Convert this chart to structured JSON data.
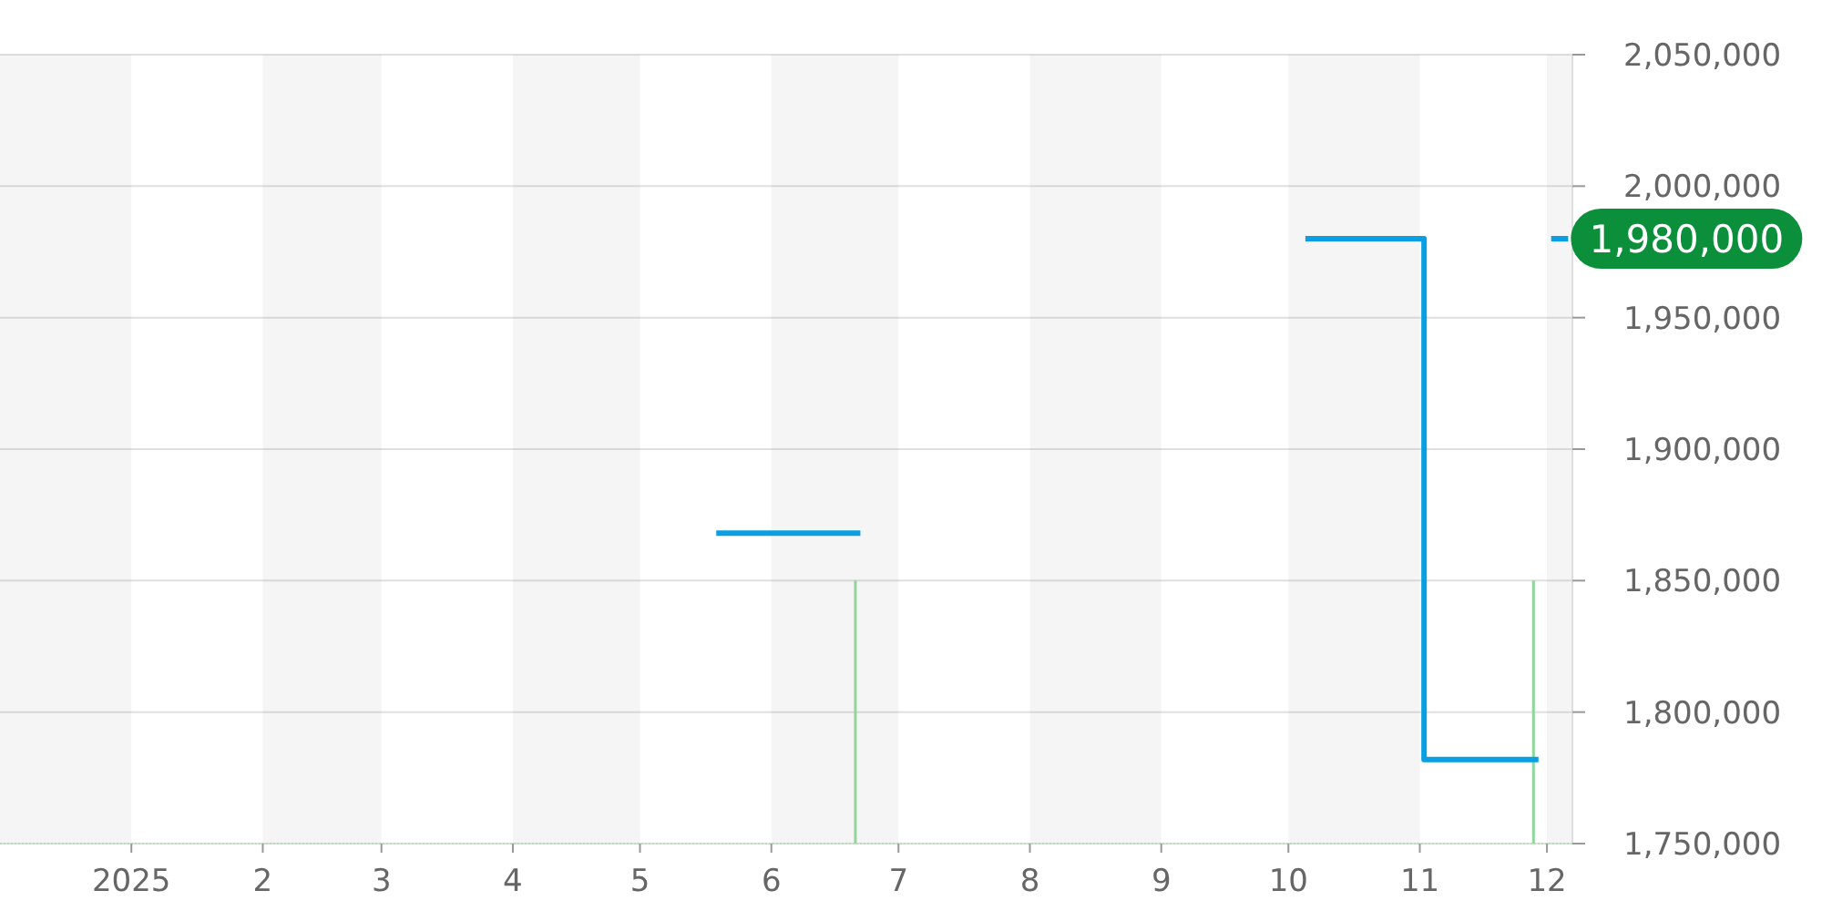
{
  "chart_data": {
    "type": "step",
    "series": [
      {
        "color": "#0a9ee2",
        "x": [
          "2025-05-19",
          "2025-06-22",
          "2025-08-01",
          "2025-10-05",
          "2025-11-02",
          "2025-11-29",
          "2025-11-30",
          "2025-12-02",
          "2025-12-06"
        ],
        "values": [
          1868000,
          1868000,
          null,
          1980000,
          1782000,
          1782000,
          null,
          1980000,
          1980000
        ],
        "value_labels": [
          null,
          null,
          null,
          null,
          null,
          null,
          null,
          null,
          "1,980,000"
        ]
      },
      {
        "type": "bar",
        "color": "#8fd69b",
        "x": [
          "2025-06-21",
          "2025-11-28"
        ],
        "values": [
          1850000,
          1850000
        ]
      }
    ],
    "xlim": [
      "2024-12-01",
      "2025-12-07"
    ],
    "xticks": [
      {
        "value": "2025-01-01",
        "label": "2025"
      },
      {
        "value": "2025-02-01",
        "label": "2"
      },
      {
        "value": "2025-03-01",
        "label": "3"
      },
      {
        "value": "2025-04-01",
        "label": "4"
      },
      {
        "value": "2025-05-01",
        "label": "5"
      },
      {
        "value": "2025-06-01",
        "label": "6"
      },
      {
        "value": "2025-07-01",
        "label": "7"
      },
      {
        "value": "2025-08-01",
        "label": "8"
      },
      {
        "value": "2025-09-01",
        "label": "9"
      },
      {
        "value": "2025-10-01",
        "label": "10"
      },
      {
        "value": "2025-11-01",
        "label": "11"
      },
      {
        "value": "2025-12-01",
        "label": "12"
      }
    ],
    "ylim": [
      1750000,
      2050000
    ],
    "yticks": [
      {
        "value": 1750000,
        "label": "1,750,000"
      },
      {
        "value": 1800000,
        "label": "1,800,000"
      },
      {
        "value": 1850000,
        "label": "1,850,000"
      },
      {
        "value": 1900000,
        "label": "1,900,000"
      },
      {
        "value": 1950000,
        "label": "1,950,000"
      },
      {
        "value": 2000000,
        "label": "2,000,000"
      },
      {
        "value": 2050000,
        "label": "2,050,000"
      }
    ],
    "grid": "y",
    "bands": [
      {
        "axis": "x",
        "from": "2024-12-01",
        "to": "2025-01-01",
        "color": "#f5f5f5"
      },
      {
        "axis": "x",
        "from": "2025-02-01",
        "to": "2025-03-01",
        "color": "#f5f5f5"
      },
      {
        "axis": "x",
        "from": "2025-04-01",
        "to": "2025-05-01",
        "color": "#f5f5f5"
      },
      {
        "axis": "x",
        "from": "2025-06-01",
        "to": "2025-07-01",
        "color": "#f5f5f5"
      },
      {
        "axis": "x",
        "from": "2025-08-01",
        "to": "2025-09-01",
        "color": "#f5f5f5"
      },
      {
        "axis": "x",
        "from": "2025-10-01",
        "to": "2025-11-01",
        "color": "#f5f5f5"
      },
      {
        "axis": "x",
        "from": "2025-12-01",
        "to": "2025-12-07",
        "color": "#f5f5f5"
      }
    ],
    "line_style": "solid",
    "marker": "none"
  }
}
